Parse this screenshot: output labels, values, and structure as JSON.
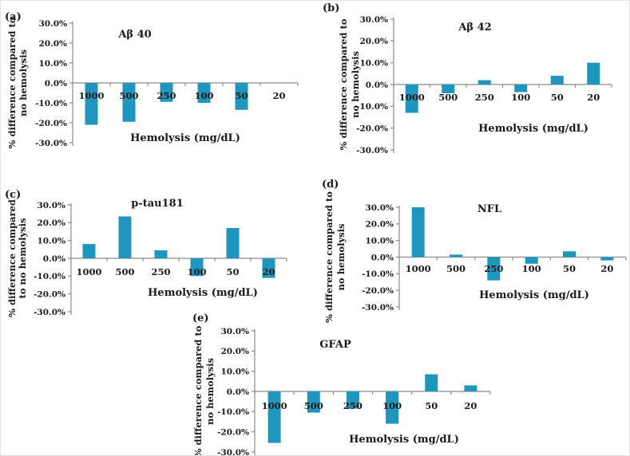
{
  "figure": {
    "background": "#ffffff",
    "colors": {
      "bar": "#1f96be",
      "axis": "#8c8c8c",
      "text": "#1a1a1a"
    }
  },
  "chart_data": [
    {
      "type": "bar",
      "panel_label": "(a)",
      "title": "Aβ 40",
      "categories": [
        "1000",
        "500",
        "250",
        "100",
        "50",
        "20"
      ],
      "values": [
        -21,
        -19.5,
        -9.5,
        -10,
        -13.5,
        0
      ],
      "xlabel": "Hemolysis (mg/dL)",
      "ylabel": "% difference compared to no hemolysis",
      "ylabel_lines": [
        "% difference compared to",
        "no hemolysis"
      ],
      "yticks": [
        30,
        20,
        10,
        0,
        -10,
        -20,
        -30
      ],
      "ytick_labels": [
        "30.0%",
        "20.0%",
        "10.0%",
        "0.0%",
        "-10.0%",
        "-20.0%",
        "-30.0%"
      ],
      "ylim": [
        -30,
        30
      ],
      "grid": false,
      "legend": null
    },
    {
      "type": "bar",
      "panel_label": "(b)",
      "title": "Aβ 42",
      "categories": [
        "1000",
        "500",
        "250",
        "100",
        "50",
        "20"
      ],
      "values": [
        -13,
        -4,
        2,
        -3.5,
        4,
        10
      ],
      "xlabel": "Hemolysis (mg/dL)",
      "ylabel": "% difference compared to no hemolysis",
      "ylabel_lines": [
        "% difference compared to",
        "no hemolysis"
      ],
      "yticks": [
        30,
        20,
        10,
        0,
        -10,
        -20,
        -30
      ],
      "ytick_labels": [
        "30.0%",
        "20.0%",
        "10.0%",
        "0.0%",
        "-10.0%",
        "-20.0%",
        "-30.0%"
      ],
      "ylim": [
        -30,
        30
      ],
      "grid": false,
      "legend": null
    },
    {
      "type": "bar",
      "panel_label": "(c)",
      "title": "p-tau181",
      "categories": [
        "1000",
        "500",
        "250",
        "100",
        "50",
        "20"
      ],
      "values": [
        8,
        23.5,
        4.5,
        -10,
        17,
        -11
      ],
      "xlabel": "Hemolysis (mg/dL)",
      "ylabel": "% difference compared to no hemolysis",
      "ylabel_lines": [
        "% difference compared",
        "to no hemolysis"
      ],
      "yticks": [
        30,
        20,
        10,
        0,
        -10,
        -20,
        -30
      ],
      "ytick_labels": [
        "30.0%",
        "20.0%",
        "10.0%",
        "0.0%",
        "-10.0%",
        "-20.0%",
        "-30.0%"
      ],
      "ylim": [
        -30,
        30
      ],
      "grid": false,
      "legend": null
    },
    {
      "type": "bar",
      "panel_label": "(d)",
      "title": "NFL",
      "categories": [
        "1000",
        "500",
        "250",
        "100",
        "50",
        "20"
      ],
      "values": [
        30,
        1.5,
        -14,
        -4,
        3.5,
        -2
      ],
      "xlabel": "Hemolysis (mg/dL)",
      "ylabel": "% difference compared to no hemolysis",
      "ylabel_lines": [
        "% difference compared to",
        "no hemolysis"
      ],
      "yticks": [
        30,
        20,
        10,
        0,
        -10,
        -20,
        -30
      ],
      "ytick_labels": [
        "30.0%",
        "20.0%",
        "10.0%",
        "0.0%",
        "-10.0%",
        "-20.0%",
        "-30.0%"
      ],
      "ylim": [
        -30,
        30
      ],
      "grid": false,
      "legend": null
    },
    {
      "type": "bar",
      "panel_label": "(e)",
      "title": "GFAP",
      "categories": [
        "1000",
        "500",
        "250",
        "100",
        "50",
        "20"
      ],
      "values": [
        -25.5,
        -10.5,
        -8.5,
        -16,
        8.5,
        3
      ],
      "xlabel": "Hemolysis (mg/dL)",
      "ylabel": "% difference compared to no hemolysis",
      "ylabel_lines": [
        "% difference compared to",
        "no hemolysis"
      ],
      "yticks": [
        30,
        20,
        10,
        0,
        -10,
        -20,
        -30
      ],
      "ytick_labels": [
        "30.0%",
        "20.0%",
        "10.0%",
        "0.0%",
        "-10.0%",
        "-20.0%",
        "-30.0%"
      ],
      "ylim": [
        -30,
        30
      ],
      "grid": false,
      "legend": null
    }
  ]
}
